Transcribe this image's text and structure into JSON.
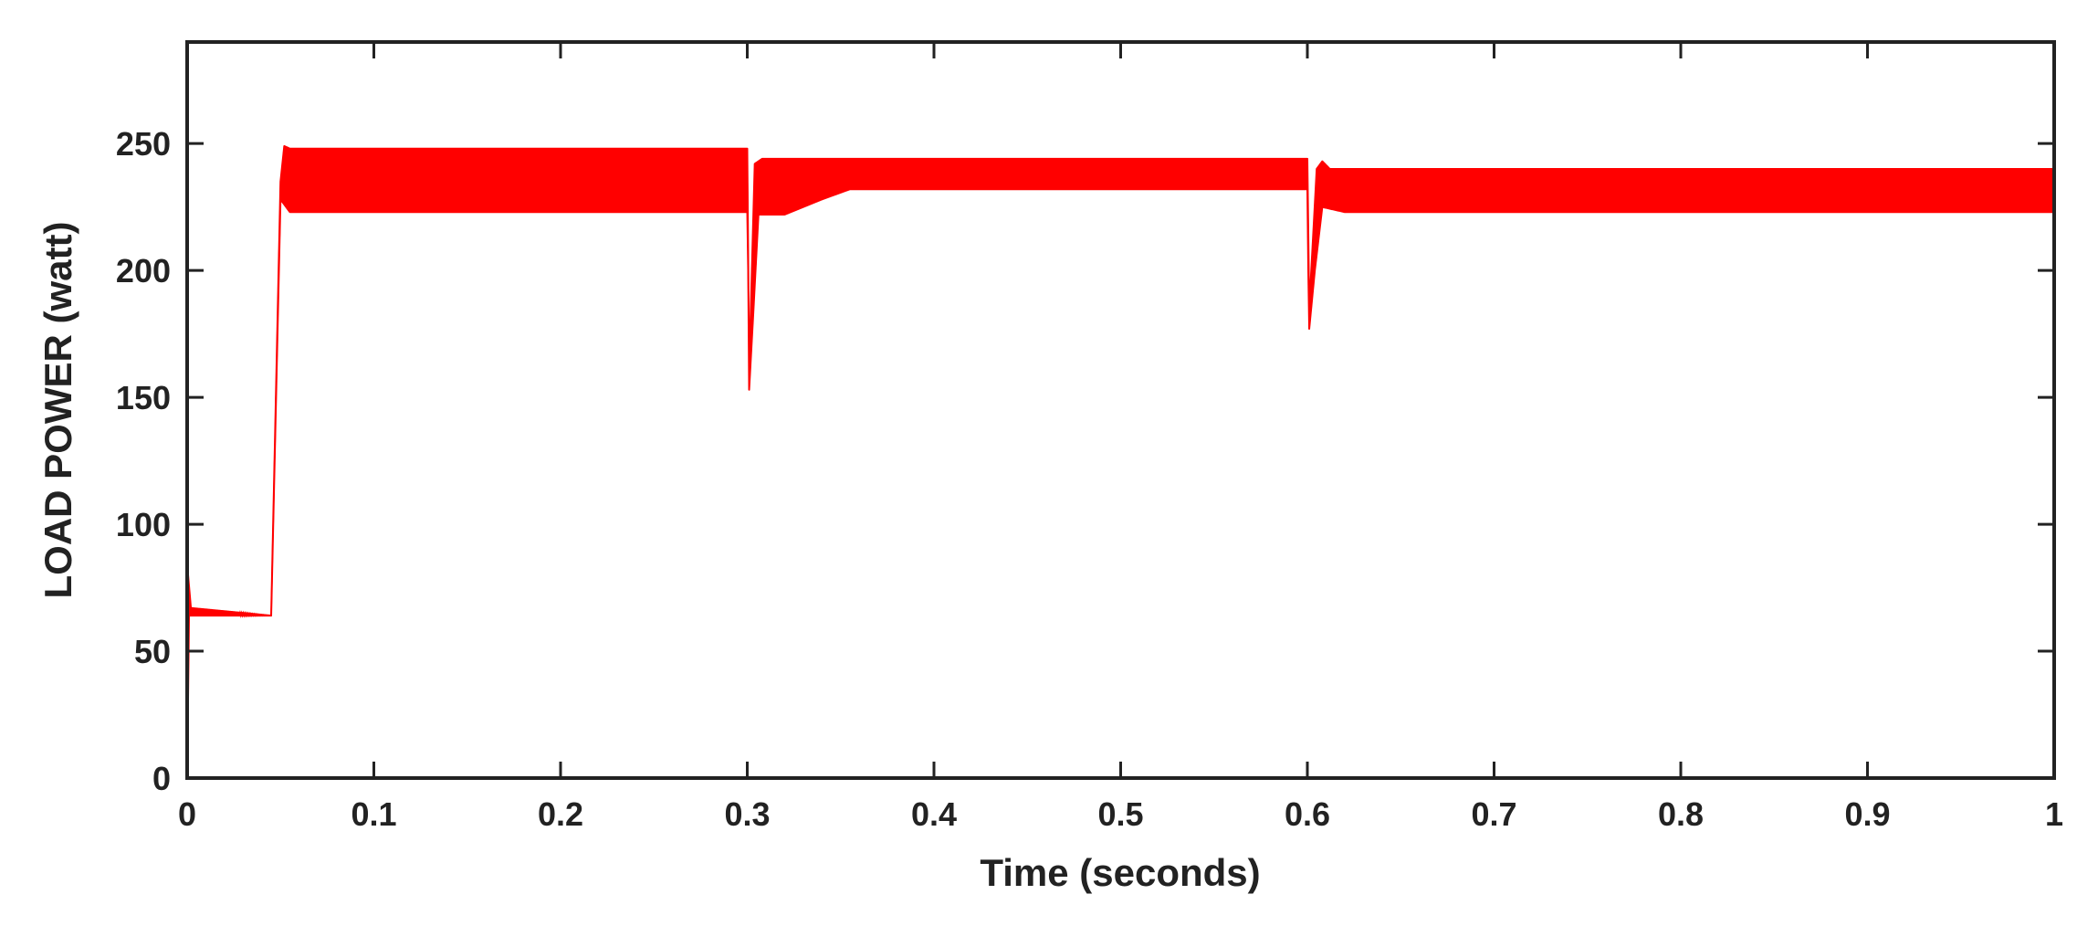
{
  "chart_data": {
    "type": "line",
    "title": "",
    "xlabel": "Time (seconds)",
    "ylabel": "LOAD POWER (watt)",
    "xlim": [
      0,
      1
    ],
    "ylim": [
      0,
      290
    ],
    "x_ticks": [
      0,
      0.1,
      0.2,
      0.3,
      0.4,
      0.5,
      0.6,
      0.7,
      0.8,
      0.9,
      1
    ],
    "x_tick_labels": [
      "0",
      "0.1",
      "0.2",
      "0.3",
      "0.4",
      "0.5",
      "0.6",
      "0.7",
      "0.8",
      "0.9",
      "1"
    ],
    "y_ticks": [
      0,
      50,
      100,
      150,
      200,
      250
    ],
    "y_tick_labels": [
      "0",
      "50",
      "100",
      "150",
      "200",
      "250"
    ],
    "grid": false,
    "legend": "none",
    "series": [
      {
        "color": "#ff0000",
        "envelope_lower": [
          [
            0.0,
            0
          ],
          [
            0.001,
            64
          ],
          [
            0.045,
            64
          ],
          [
            0.05,
            228
          ],
          [
            0.055,
            223
          ],
          [
            0.3,
            223
          ],
          [
            0.3005,
            200
          ],
          [
            0.301,
            153
          ],
          [
            0.303,
            180
          ],
          [
            0.306,
            222
          ],
          [
            0.32,
            222
          ],
          [
            0.34,
            228
          ],
          [
            0.355,
            232
          ],
          [
            0.6,
            232
          ],
          [
            0.6005,
            200
          ],
          [
            0.601,
            177
          ],
          [
            0.604,
            200
          ],
          [
            0.608,
            225
          ],
          [
            0.62,
            223
          ],
          [
            1.0,
            223
          ]
        ],
        "envelope_upper": [
          [
            0.0,
            0
          ],
          [
            0.0005,
            80
          ],
          [
            0.002,
            67
          ],
          [
            0.045,
            64
          ],
          [
            0.05,
            235
          ],
          [
            0.052,
            249
          ],
          [
            0.055,
            248
          ],
          [
            0.299,
            248
          ],
          [
            0.3,
            248
          ],
          [
            0.301,
            160
          ],
          [
            0.304,
            242
          ],
          [
            0.308,
            244
          ],
          [
            0.6,
            244
          ],
          [
            0.601,
            185
          ],
          [
            0.605,
            240
          ],
          [
            0.608,
            243
          ],
          [
            0.612,
            240
          ],
          [
            1.0,
            240
          ]
        ]
      }
    ]
  }
}
